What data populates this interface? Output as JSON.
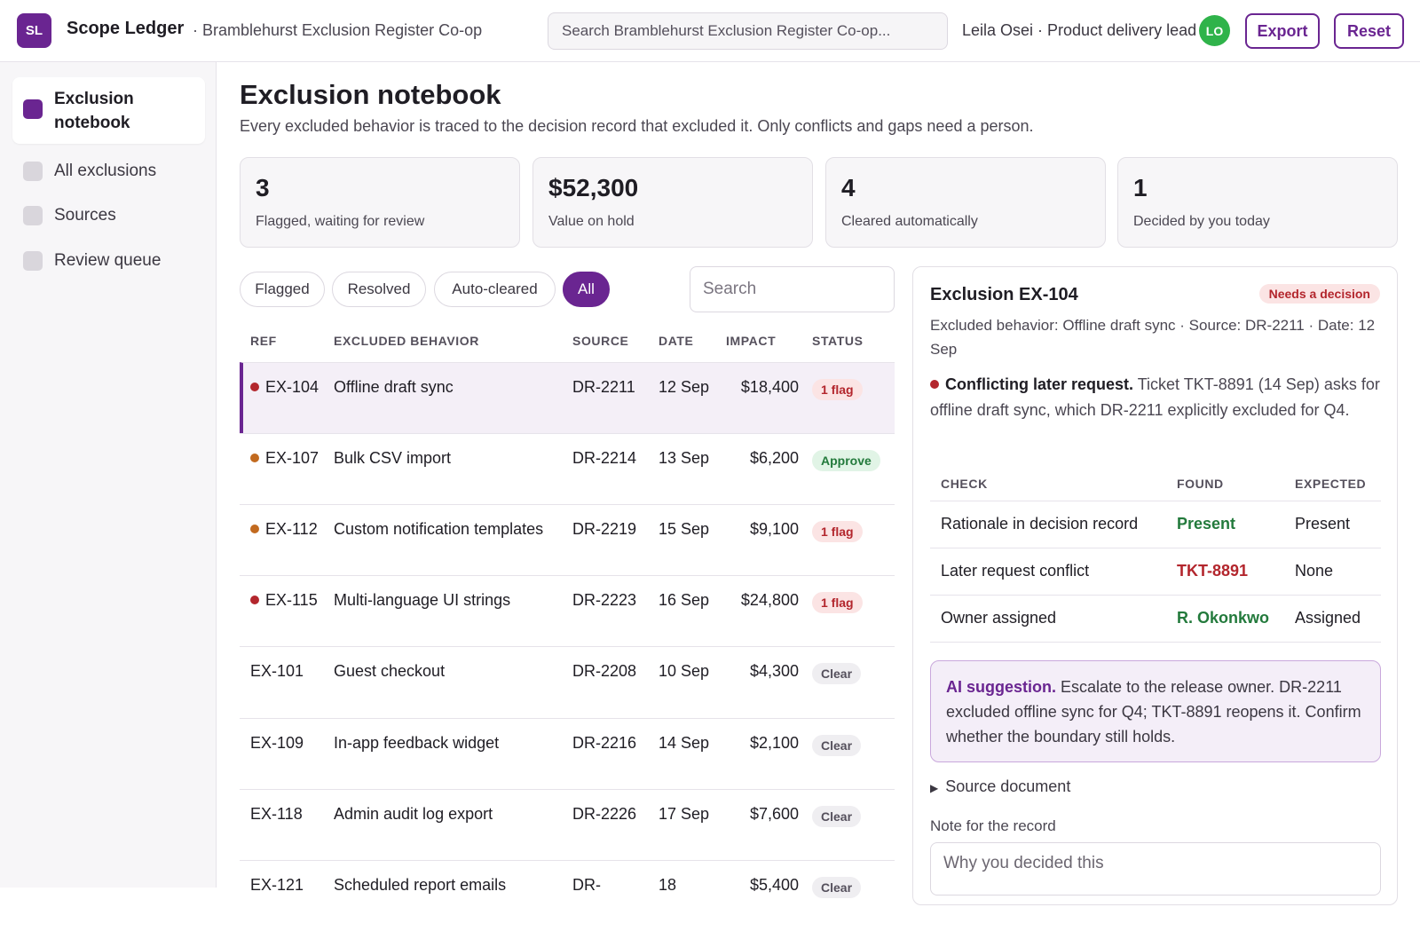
{
  "header": {
    "logo_initials": "SL",
    "app_name": "Scope Ledger",
    "org_name": "· Bramblehurst Exclusion Register Co-op",
    "search_placeholder": "Search Bramblehurst Exclusion Register Co-op...",
    "user_label": "Leila Osei · Product delivery lead",
    "avatar_initials": "LO",
    "export_label": "Export",
    "reset_label": "Reset"
  },
  "sidebar": {
    "items": [
      {
        "label": "Exclusion notebook",
        "active": true
      },
      {
        "label": "All exclusions",
        "active": false
      },
      {
        "label": "Sources",
        "active": false
      },
      {
        "label": "Review queue",
        "active": false
      }
    ]
  },
  "main": {
    "title": "Exclusion notebook",
    "subtitle": "Every excluded behavior is traced to the decision record that excluded it. Only conflicts and gaps need a person.",
    "stats": [
      {
        "value": "3",
        "label": "Flagged, waiting for review"
      },
      {
        "value": "$52,300",
        "label": "Value on hold"
      },
      {
        "value": "4",
        "label": "Cleared automatically"
      },
      {
        "value": "1",
        "label": "Decided by you today"
      }
    ],
    "filters": [
      "Flagged",
      "Resolved",
      "Auto-cleared",
      "All"
    ],
    "active_filter": "All",
    "table_search_placeholder": "Search",
    "columns": [
      "REF",
      "EXCLUDED BEHAVIOR",
      "SOURCE",
      "DATE",
      "IMPACT",
      "STATUS"
    ],
    "rows": [
      {
        "ref": "EX-104",
        "behavior": "Offline draft sync",
        "source": "DR-2211",
        "date": "12 Sep",
        "impact": "$18,400",
        "status": "1 flag",
        "dot": "#b3262d"
      },
      {
        "ref": "EX-107",
        "behavior": "Bulk CSV import",
        "source": "DR-2214",
        "date": "13 Sep",
        "impact": "$6,200",
        "status": "Approve",
        "dot": "#c26a1f"
      },
      {
        "ref": "EX-112",
        "behavior": "Custom notification templates",
        "source": "DR-2219",
        "date": "15 Sep",
        "impact": "$9,100",
        "status": "1 flag",
        "dot": "#c26a1f"
      },
      {
        "ref": "EX-115",
        "behavior": "Multi-language UI strings",
        "source": "DR-2223",
        "date": "16 Sep",
        "impact": "$24,800",
        "status": "1 flag",
        "dot": "#b3262d"
      },
      {
        "ref": "EX-101",
        "behavior": "Guest checkout",
        "source": "DR-2208",
        "date": "10 Sep",
        "impact": "$4,300",
        "status": "Clear",
        "dot": ""
      },
      {
        "ref": "EX-109",
        "behavior": "In-app feedback widget",
        "source": "DR-2216",
        "date": "14 Sep",
        "impact": "$2,100",
        "status": "Clear",
        "dot": ""
      },
      {
        "ref": "EX-118",
        "behavior": "Admin audit log export",
        "source": "DR-2226",
        "date": "17 Sep",
        "impact": "$7,600",
        "status": "Clear",
        "dot": ""
      },
      {
        "ref": "EX-121",
        "behavior": "Scheduled report emails",
        "source": "DR-",
        "date": "18",
        "impact": "$5,400",
        "status": "Clear",
        "dot": ""
      }
    ]
  },
  "detail": {
    "title": "Exclusion EX-104",
    "badge": "Needs a decision",
    "meta": "Excluded behavior: Offline draft sync · Source: DR-2211 · Date: 12 Sep",
    "conflict_title": "Conflicting later request.",
    "conflict_text": "Ticket TKT-8891 (14 Sep) asks for offline draft sync, which DR-2211 explicitly excluded for Q4.",
    "check_columns": [
      "CHECK",
      "FOUND",
      "EXPECTED"
    ],
    "checks": [
      {
        "check": "Rationale in decision record",
        "found": "Present",
        "expected": "Present",
        "ok": true
      },
      {
        "check": "Later request conflict",
        "found": "TKT-8891",
        "expected": "None",
        "ok": false
      },
      {
        "check": "Owner assigned",
        "found": "R. Okonkwo",
        "expected": "Assigned",
        "ok": true
      }
    ],
    "ai_label": "AI suggestion.",
    "ai_text": "Escalate to the release owner. DR-2211 excluded offline sync for Q4; TKT-8891 reopens it. Confirm whether the boundary still holds.",
    "source_doc_label": "Source document",
    "note_label": "Note for the record",
    "note_placeholder": "Why you decided this"
  },
  "colors": {
    "accent": "#6a2591",
    "flag": "#b3262d",
    "ok": "#237a3c",
    "avatar": "#2fb34a"
  }
}
